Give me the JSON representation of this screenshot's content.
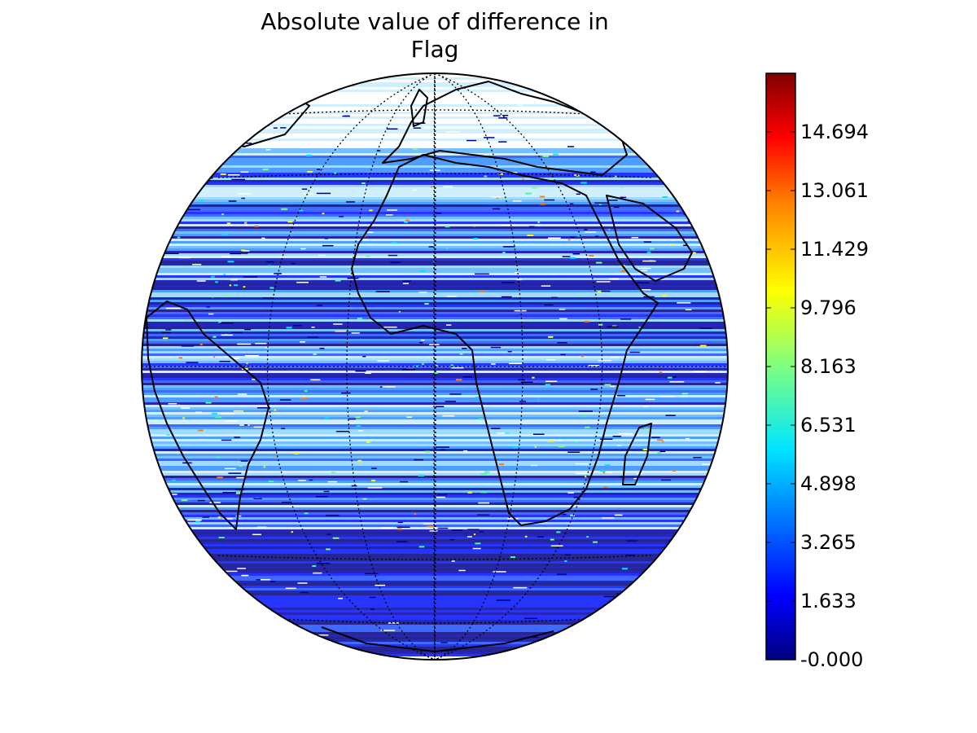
{
  "figure": {
    "title_line1": "Absolute value of difference in",
    "title_line2": "Flag"
  },
  "colorbar": {
    "min": 0,
    "max": 16.327,
    "colormap": "jet",
    "tick_labels": [
      "-0.000",
      "1.633",
      "3.265",
      "4.898",
      "6.531",
      "8.163",
      "9.796",
      "11.429",
      "13.061",
      "14.694"
    ],
    "tick_values": [
      0,
      1.633,
      3.265,
      4.898,
      6.531,
      8.163,
      9.796,
      11.429,
      13.061,
      14.694
    ]
  },
  "map": {
    "projection": "orthographic",
    "center_lon": 0,
    "center_lat": 0,
    "graticule": "dotted",
    "data_pattern": "swath stripes, mostly low values (dark blue), scattered higher values"
  }
}
